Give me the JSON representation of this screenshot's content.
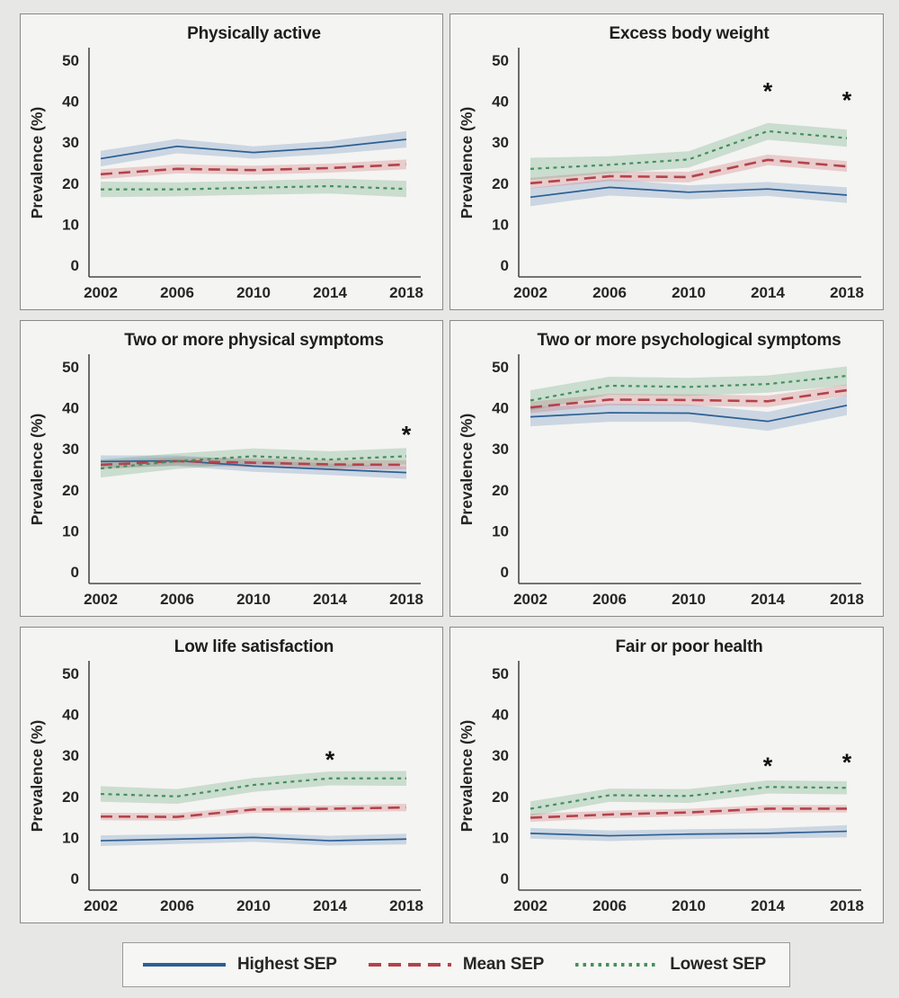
{
  "page": {
    "background": "#e7e7e5",
    "panel_background": "#f4f4f2",
    "panel_border": "#898989",
    "axis_color": "#4a4a4a",
    "text_color": "#262626"
  },
  "axes": {
    "ylabel": "Prevalence (%)",
    "yticks": [
      0,
      10,
      20,
      30,
      40,
      50
    ],
    "ylim": [
      0,
      50
    ],
    "xticks": [
      2002,
      2006,
      2010,
      2014,
      2018
    ]
  },
  "series_style": [
    {
      "name": "Highest SEP",
      "color": "#2d5f93",
      "band": "rgba(93,133,185,0.27)",
      "dash": "",
      "width": 1.7
    },
    {
      "name": "Mean SEP",
      "color": "#b2434c",
      "band": "rgba(205,95,105,0.27)",
      "dash": "13,7",
      "width": 2.6
    },
    {
      "name": "Lowest SEP",
      "color": "#43905f",
      "band": "rgba(90,160,115,0.27)",
      "dash": "4,4.5",
      "width": 2.2
    }
  ],
  "legend": {
    "items": [
      {
        "label": "Highest SEP"
      },
      {
        "label": "Mean SEP"
      },
      {
        "label": "Lowest SEP"
      }
    ]
  },
  "chart_data": [
    {
      "type": "line",
      "title": "Physically active",
      "x": [
        2002,
        2006,
        2010,
        2014,
        2018
      ],
      "series": [
        {
          "name": "Highest SEP",
          "values": [
            26.0,
            29.0,
            27.5,
            28.7,
            30.7
          ],
          "upper": [
            27.9,
            30.8,
            29.0,
            30.3,
            32.7
          ],
          "lower": [
            24.1,
            27.3,
            26.0,
            27.1,
            28.7
          ]
        },
        {
          "name": "Mean SEP",
          "values": [
            22.2,
            23.5,
            23.2,
            23.7,
            24.6
          ],
          "upper": [
            23.4,
            24.6,
            24.3,
            24.8,
            25.8
          ],
          "lower": [
            21.0,
            22.4,
            22.1,
            22.6,
            23.4
          ]
        },
        {
          "name": "Lowest SEP",
          "values": [
            18.5,
            18.5,
            18.9,
            19.3,
            18.6
          ],
          "upper": [
            20.4,
            20.2,
            20.6,
            21.1,
            20.6
          ],
          "lower": [
            16.6,
            16.8,
            17.2,
            17.5,
            16.6
          ]
        }
      ],
      "annotations": []
    },
    {
      "type": "line",
      "title": "Excess body weight",
      "x": [
        2002,
        2006,
        2010,
        2014,
        2018
      ],
      "series": [
        {
          "name": "Highest SEP",
          "values": [
            16.6,
            19.0,
            17.8,
            18.6,
            17.1
          ],
          "upper": [
            18.8,
            21.0,
            19.5,
            20.3,
            19.0
          ],
          "lower": [
            14.4,
            17.0,
            16.1,
            16.9,
            15.2
          ]
        },
        {
          "name": "Mean SEP",
          "values": [
            20.0,
            21.7,
            21.5,
            25.7,
            24.1
          ],
          "upper": [
            21.3,
            22.9,
            22.8,
            27.0,
            25.4
          ],
          "lower": [
            18.7,
            20.5,
            20.2,
            24.4,
            22.8
          ]
        },
        {
          "name": "Lowest SEP",
          "values": [
            23.5,
            24.5,
            25.8,
            32.7,
            31.0
          ],
          "upper": [
            26.2,
            26.6,
            27.8,
            34.7,
            33.1
          ],
          "lower": [
            20.8,
            22.4,
            23.8,
            30.6,
            28.9
          ]
        }
      ],
      "annotations": [
        {
          "x": 2014,
          "y": 43.5,
          "text": "*"
        },
        {
          "x": 2018,
          "y": 41.3,
          "text": "*"
        }
      ]
    },
    {
      "type": "line",
      "title": "Two or more physical symptoms",
      "x": [
        2002,
        2006,
        2010,
        2014,
        2018
      ],
      "series": [
        {
          "name": "Highest SEP",
          "values": [
            26.9,
            27.1,
            25.8,
            25.0,
            24.2
          ],
          "upper": [
            28.4,
            28.4,
            27.2,
            26.4,
            25.7
          ],
          "lower": [
            25.4,
            25.8,
            24.4,
            23.6,
            22.7
          ]
        },
        {
          "name": "Mean SEP",
          "values": [
            26.1,
            27.0,
            26.6,
            26.2,
            26.1
          ],
          "upper": [
            27.2,
            28.0,
            27.7,
            27.3,
            27.2
          ],
          "lower": [
            25.0,
            26.0,
            25.5,
            25.1,
            25.0
          ]
        },
        {
          "name": "Lowest SEP",
          "values": [
            25.2,
            27.0,
            28.2,
            27.4,
            28.2
          ],
          "upper": [
            27.4,
            28.9,
            30.1,
            29.4,
            30.2
          ],
          "lower": [
            23.0,
            25.1,
            26.3,
            25.4,
            26.2
          ]
        }
      ],
      "annotations": [
        {
          "x": 2018,
          "y": 34.5,
          "text": "*"
        }
      ]
    },
    {
      "type": "line",
      "title": "Two or more psychological symptoms",
      "x": [
        2002,
        2006,
        2010,
        2014,
        2018
      ],
      "series": [
        {
          "name": "Highest SEP",
          "values": [
            37.8,
            38.8,
            38.7,
            36.7,
            40.6
          ],
          "upper": [
            40.1,
            41.0,
            40.8,
            39.0,
            43.0
          ],
          "lower": [
            35.5,
            36.6,
            36.6,
            34.4,
            38.2
          ]
        },
        {
          "name": "Mean SEP",
          "values": [
            40.1,
            42.0,
            41.9,
            41.6,
            44.3
          ],
          "upper": [
            41.5,
            43.4,
            43.3,
            43.0,
            45.7
          ],
          "lower": [
            38.7,
            40.6,
            40.5,
            40.2,
            42.9
          ]
        },
        {
          "name": "Lowest SEP",
          "values": [
            41.8,
            45.4,
            45.1,
            45.8,
            47.8
          ],
          "upper": [
            44.3,
            47.6,
            47.3,
            47.9,
            50.1
          ],
          "lower": [
            39.3,
            43.2,
            42.9,
            43.7,
            45.5
          ]
        }
      ],
      "annotations": []
    },
    {
      "type": "line",
      "title": "Low life satisfaction",
      "x": [
        2002,
        2006,
        2010,
        2014,
        2018
      ],
      "series": [
        {
          "name": "Highest SEP",
          "values": [
            9.2,
            9.6,
            10.0,
            9.2,
            9.6
          ],
          "upper": [
            10.5,
            10.8,
            11.1,
            10.4,
            10.9
          ],
          "lower": [
            7.9,
            8.4,
            8.9,
            8.0,
            8.3
          ]
        },
        {
          "name": "Mean SEP",
          "values": [
            15.1,
            15.0,
            16.8,
            17.0,
            17.3
          ],
          "upper": [
            16.0,
            15.9,
            17.6,
            17.8,
            18.2
          ],
          "lower": [
            14.2,
            14.1,
            16.0,
            16.2,
            16.4
          ]
        },
        {
          "name": "Lowest SEP",
          "values": [
            20.6,
            20.0,
            22.8,
            24.4,
            24.4
          ],
          "upper": [
            22.5,
            21.8,
            24.5,
            26.1,
            26.2
          ],
          "lower": [
            18.7,
            18.2,
            21.1,
            22.7,
            22.6
          ]
        }
      ],
      "annotations": [
        {
          "x": 2014,
          "y": 30.0,
          "text": "*"
        }
      ]
    },
    {
      "type": "line",
      "title": "Fair or poor health",
      "x": [
        2002,
        2006,
        2010,
        2014,
        2018
      ],
      "series": [
        {
          "name": "Highest SEP",
          "values": [
            11.0,
            10.4,
            10.8,
            11.0,
            11.5
          ],
          "upper": [
            12.3,
            11.7,
            12.0,
            12.2,
            13.0
          ],
          "lower": [
            9.7,
            9.1,
            9.6,
            9.8,
            10.0
          ]
        },
        {
          "name": "Mean SEP",
          "values": [
            14.8,
            15.6,
            16.1,
            17.0,
            17.0
          ],
          "upper": [
            15.8,
            16.5,
            17.0,
            17.9,
            17.9
          ],
          "lower": [
            13.8,
            14.7,
            15.2,
            16.1,
            16.1
          ]
        },
        {
          "name": "Lowest SEP",
          "values": [
            17.0,
            20.3,
            20.1,
            22.3,
            22.1
          ],
          "upper": [
            18.8,
            21.9,
            21.8,
            23.9,
            23.7
          ],
          "lower": [
            15.2,
            18.7,
            18.4,
            20.7,
            20.5
          ]
        }
      ],
      "annotations": [
        {
          "x": 2014,
          "y": 28.5,
          "text": "*"
        },
        {
          "x": 2018,
          "y": 29.4,
          "text": "*"
        }
      ]
    }
  ]
}
